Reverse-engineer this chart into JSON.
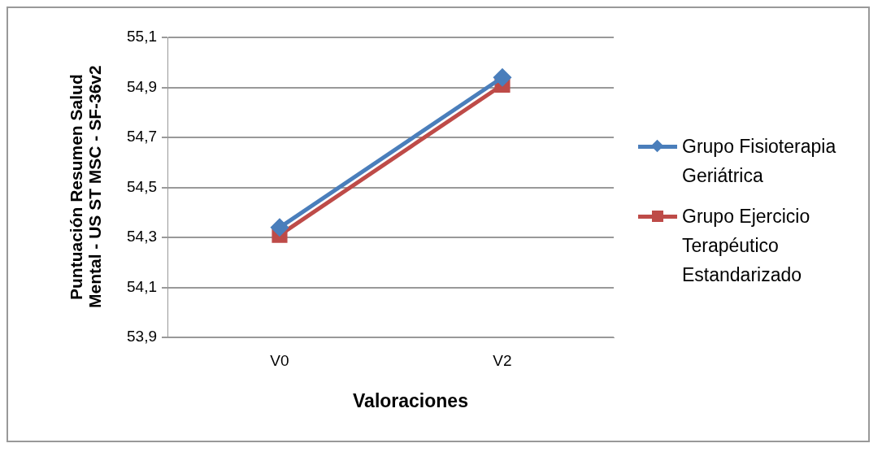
{
  "chart_data": {
    "type": "line",
    "xlabel": "Valoraciones",
    "ylabel": "Puntuación Resumen Salud Mental - US ST MSC - SF-36v2",
    "categories": [
      "V0",
      "V2"
    ],
    "series": [
      {
        "name": "Grupo Fisioterapia Geriátrica",
        "color": "#4a7ebb",
        "values": [
          54.34,
          54.94
        ],
        "marker": "diamond"
      },
      {
        "name": "Grupo Ejercicio Terapéutico Estandarizado",
        "color": "#be4b48",
        "values": [
          54.31,
          54.91
        ],
        "marker": "square"
      }
    ],
    "ylim": [
      53.9,
      55.1
    ],
    "yticks": [
      {
        "value": 53.9,
        "label": "53,9"
      },
      {
        "value": 54.1,
        "label": "54,1"
      },
      {
        "value": 54.3,
        "label": "54,3"
      },
      {
        "value": 54.5,
        "label": "54,5"
      },
      {
        "value": 54.7,
        "label": "54,7"
      },
      {
        "value": 54.9,
        "label": "54,9"
      },
      {
        "value": 55.1,
        "label": "55,1"
      }
    ],
    "grid": "y",
    "legend": "right"
  }
}
